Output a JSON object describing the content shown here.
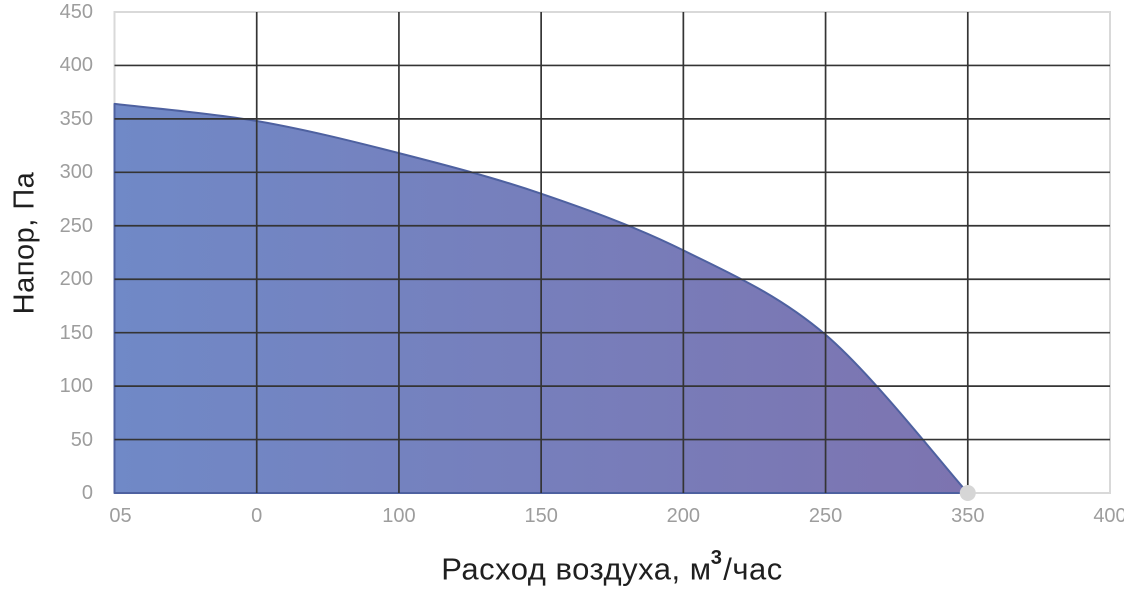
{
  "page": {
    "background": "#ffffff"
  },
  "chart_data": {
    "type": "area",
    "title": "",
    "xlabel": "Расход воздуха, м³/час",
    "xlabel_parts": {
      "prefix": "Расход воздуха, м",
      "sup": "3",
      "suffix": "/час"
    },
    "ylabel": "Напор, Па",
    "x_categories": [
      "05",
      "0",
      "100",
      "150",
      "200",
      "250",
      "350",
      "400"
    ],
    "y_ticks": [
      0,
      50,
      100,
      150,
      200,
      250,
      300,
      350,
      400,
      450
    ],
    "ylim": [
      0,
      450
    ],
    "x_axis_type": "categorical, 8 evenly spaced labels",
    "grid": "dark internal gridlines both directions, light gray outer border",
    "legend": "none",
    "series": [
      {
        "name": "fan-pressure-curve",
        "categories": [
          "05",
          "0",
          "100",
          "150",
          "200",
          "250",
          "350"
        ],
        "values": [
          364,
          348,
          318,
          280,
          227,
          148,
          0
        ]
      }
    ],
    "end_marker": {
      "category": "350",
      "value": 0
    },
    "colors": {
      "fill_gradient_left": "#7089c7",
      "fill_gradient_right": "#7d74b0",
      "area_outline": "#4e61a0",
      "gridline": "#343434",
      "plot_border": "#d9d9d9",
      "marker": "#d6d6d6",
      "tick_label": "#9d9d9d",
      "axis_title": "#1f1f1f",
      "background": "#ffffff"
    }
  }
}
